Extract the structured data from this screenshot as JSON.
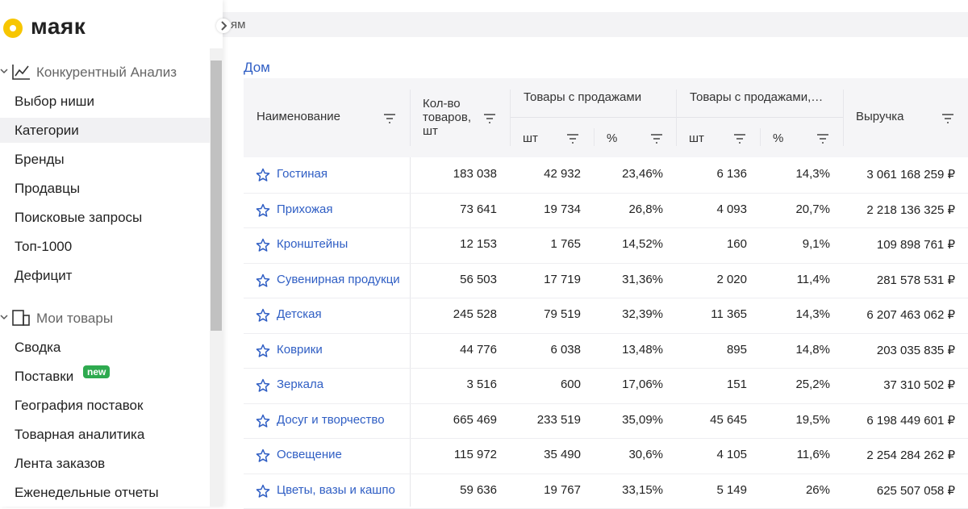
{
  "logo": "маяк",
  "top_bar": {
    "text": "ям"
  },
  "sidebar": {
    "sections": [
      {
        "title": "Конкурентный Анализ",
        "items": [
          {
            "label": "Выбор ниши"
          },
          {
            "label": "Категории"
          },
          {
            "label": "Бренды"
          },
          {
            "label": "Продавцы"
          },
          {
            "label": "Поисковые запросы"
          },
          {
            "label": "Топ-1000"
          },
          {
            "label": "Дефицит"
          }
        ]
      },
      {
        "title": "Мои товары",
        "items": [
          {
            "label": "Сводка"
          },
          {
            "label": "Поставки",
            "badge": "new"
          },
          {
            "label": "География поставок"
          },
          {
            "label": "Товарная аналитика"
          },
          {
            "label": "Лента заказов"
          },
          {
            "label": "Еженедельные отчеты"
          }
        ]
      }
    ]
  },
  "breadcrumb": "Дом",
  "table": {
    "header": {
      "name": "Наименование",
      "count": "Кол-во товаров, шт",
      "sales_group": "Товары с продажами",
      "sales_group_2": "Товары с продажами,…",
      "sub": [
        "шт",
        "%",
        "шт",
        "%"
      ],
      "revenue": "Выручка"
    },
    "rows": [
      [
        "Гостиная",
        "183 038",
        "42 932",
        "23,46%",
        "6 136",
        "14,3%",
        "3 061 168 259 ₽"
      ],
      [
        "Прихожая",
        "73 641",
        "19 734",
        "26,8%",
        "4 093",
        "20,7%",
        "2 218 136 325 ₽"
      ],
      [
        "Кронштейны",
        "12 153",
        "1 765",
        "14,52%",
        "160",
        "9,1%",
        "109 898 761 ₽"
      ],
      [
        "Сувенирная продукци",
        "56 503",
        "17 719",
        "31,36%",
        "2 020",
        "11,4%",
        "281 578 531 ₽"
      ],
      [
        "Детская",
        "245 528",
        "79 519",
        "32,39%",
        "11 365",
        "14,3%",
        "6 207 463 062 ₽"
      ],
      [
        "Коврики",
        "44 776",
        "6 038",
        "13,48%",
        "895",
        "14,8%",
        "203 035 835 ₽"
      ],
      [
        "Зеркала",
        "3 516",
        "600",
        "17,06%",
        "151",
        "25,2%",
        "37 310 502 ₽"
      ],
      [
        "Досуг и творчество",
        "665 469",
        "233 519",
        "35,09%",
        "45 645",
        "19,5%",
        "6 198 449 601 ₽"
      ],
      [
        "Освещение",
        "115 972",
        "35 490",
        "30,6%",
        "4 105",
        "11,6%",
        "2 254 284 262 ₽"
      ],
      [
        "Цветы, вазы и кашпо",
        "59 636",
        "19 767",
        "33,15%",
        "5 149",
        "26%",
        "625 507 058 ₽"
      ]
    ]
  }
}
